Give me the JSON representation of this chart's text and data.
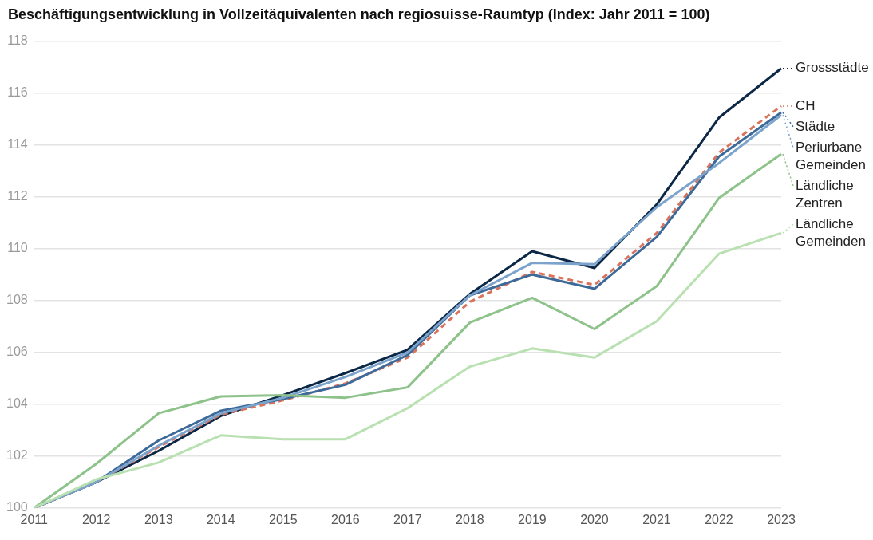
{
  "chart_data": {
    "type": "line",
    "title": "Beschäftigungsentwicklung in Vollzeitäquivalenten nach regiosuisse-Raumtyp (Index: Jahr 2011 = 100)",
    "categories": [
      "2011",
      "2012",
      "2013",
      "2014",
      "2015",
      "2016",
      "2017",
      "2018",
      "2019",
      "2020",
      "2021",
      "2022",
      "2023"
    ],
    "series": [
      {
        "name": "Ländliche Gemeinden",
        "color": "#b8e0b0",
        "values": [
          100,
          101.1,
          101.75,
          102.8,
          102.65,
          102.65,
          103.85,
          105.45,
          106.15,
          105.8,
          107.2,
          109.8,
          110.6
        ]
      },
      {
        "name": "Ländliche Zentren",
        "color": "#8dc38a",
        "values": [
          100,
          101.7,
          103.65,
          104.3,
          104.35,
          104.25,
          104.65,
          107.15,
          108.1,
          106.9,
          108.55,
          111.95,
          113.65
        ]
      },
      {
        "name": "Periurbane Gemeinden",
        "color": "#7ba3cc",
        "values": [
          100,
          101.0,
          102.4,
          103.65,
          104.25,
          105.05,
          106.0,
          108.2,
          109.45,
          109.4,
          111.6,
          113.3,
          115.15
        ]
      },
      {
        "name": "Städte",
        "color": "#3e6a9a",
        "values": [
          100,
          101.0,
          102.6,
          103.75,
          104.2,
          104.75,
          105.9,
          108.2,
          109.0,
          108.45,
          110.45,
          113.55,
          115.25
        ]
      },
      {
        "name": "CH",
        "color": "#d9735c",
        "line_style": "dashed",
        "values": [
          100,
          101.0,
          102.35,
          103.6,
          104.15,
          104.8,
          105.8,
          107.95,
          109.1,
          108.6,
          110.6,
          113.7,
          115.5
        ]
      },
      {
        "name": "Grossstädte",
        "color": "#0d2846",
        "values": [
          100,
          101.0,
          102.2,
          103.55,
          104.35,
          105.2,
          106.1,
          108.25,
          109.9,
          109.25,
          111.7,
          115.05,
          116.95
        ]
      }
    ],
    "ylim": [
      100,
      118
    ],
    "yticks": [
      100,
      102,
      104,
      106,
      108,
      110,
      112,
      114,
      116,
      118
    ],
    "grid": "y",
    "legend": "right",
    "marker": "none",
    "line_style": "solid"
  }
}
